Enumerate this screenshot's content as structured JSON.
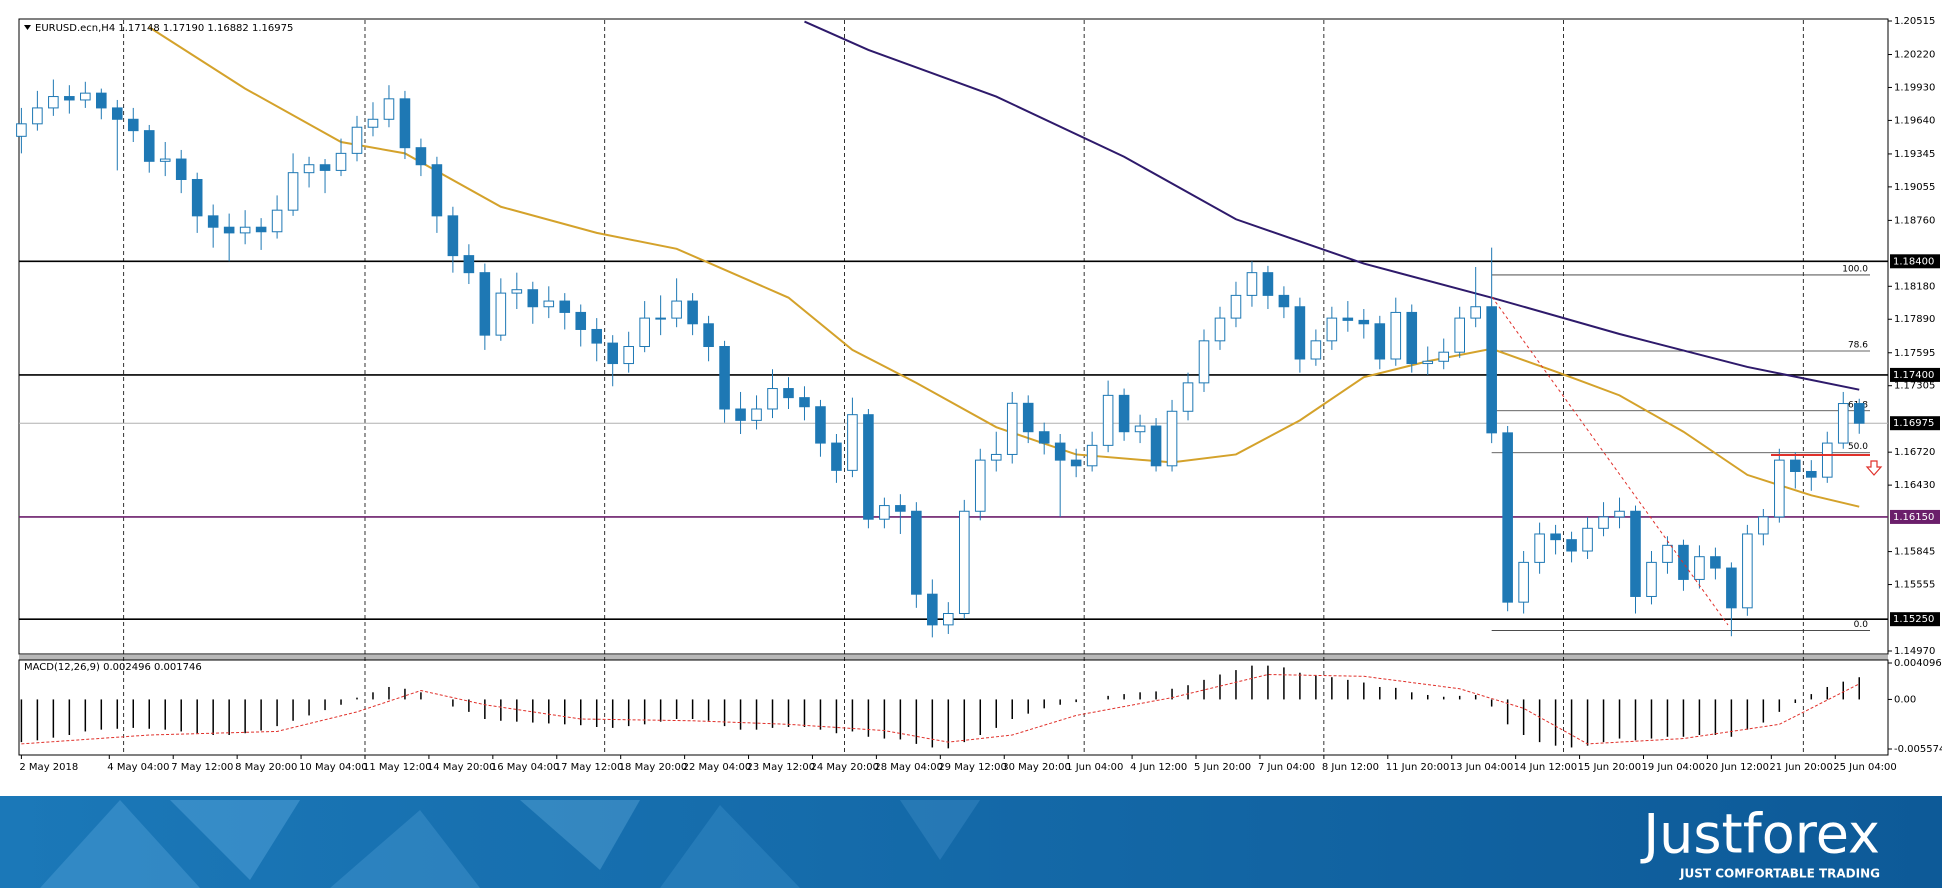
{
  "chart_data": {
    "type": "candlestick",
    "title": "EURUSD.ecn,H4  1.17148 1.17190 1.16882 1.16975",
    "xlim": [
      -0.15,
      116.8
    ],
    "xticks": [
      {
        "value": 0,
        "label": "2 May 2018"
      },
      {
        "value": 5.5,
        "label": "4 May 04:00"
      },
      {
        "value": 9.5,
        "label": "7 May 12:00"
      },
      {
        "value": 13.5,
        "label": "8 May 20:00"
      },
      {
        "value": 17.5,
        "label": "10 May 04:00"
      },
      {
        "value": 21.5,
        "label": "11 May 12:00"
      },
      {
        "value": 25.5,
        "label": "14 May 20:00"
      },
      {
        "value": 29.5,
        "label": "16 May 04:00"
      },
      {
        "value": 33.5,
        "label": "17 May 12:00"
      },
      {
        "value": 37.5,
        "label": "18 May 20:00"
      },
      {
        "value": 41.5,
        "label": "22 May 04:00"
      },
      {
        "value": 45.5,
        "label": "23 May 12:00"
      },
      {
        "value": 49.5,
        "label": "24 May 20:00"
      },
      {
        "value": 53.5,
        "label": "28 May 04:00"
      },
      {
        "value": 57.5,
        "label": "29 May 12:00"
      },
      {
        "value": 61.5,
        "label": "30 May 20:00"
      },
      {
        "value": 65.5,
        "label": "1 Jun 04:00"
      },
      {
        "value": 69.5,
        "label": "4 Jun 12:00"
      },
      {
        "value": 73.5,
        "label": "5 Jun 20:00"
      },
      {
        "value": 77.5,
        "label": "7 Jun 04:00"
      },
      {
        "value": 81.5,
        "label": "8 Jun 12:00"
      },
      {
        "value": 85.5,
        "label": "11 Jun 20:00"
      },
      {
        "value": 89.5,
        "label": "13 Jun 04:00"
      },
      {
        "value": 93.5,
        "label": "14 Jun 12:00"
      },
      {
        "value": 97.5,
        "label": "15 Jun 20:00"
      },
      {
        "value": 101.5,
        "label": "19 Jun 04:00"
      },
      {
        "value": 105.5,
        "label": "20 Jun 12:00"
      },
      {
        "value": 109.5,
        "label": "21 Jun 20:00"
      },
      {
        "value": 113.5,
        "label": "25 Jun 04:00"
      }
    ],
    "xgrid": [
      6.4,
      21.5,
      36.5,
      51.5,
      66.5,
      81.5,
      96.5,
      111.5
    ],
    "ylim": [
      1.1497,
      1.20515
    ],
    "yticks": [
      1.20515,
      {
        "value": 1.2022,
        "label": "1.20220"
      },
      {
        "value": 1.1993,
        "label": "1.19930"
      },
      {
        "value": 1.1964,
        "label": "1.19640"
      },
      1.19345,
      1.19055,
      {
        "value": 1.1876,
        "label": "1.18760"
      },
      {
        "value": 1.1818,
        "label": "1.18180"
      },
      {
        "value": 1.1789,
        "label": "1.17890"
      },
      1.17595,
      1.17305,
      {
        "value": 1.1672,
        "label": "1.16720"
      },
      {
        "value": 1.1643,
        "label": "1.16430"
      },
      1.15845,
      1.15555,
      {
        "value": 1.1497,
        "label": "1.14970"
      }
    ],
    "up_color": "#ffffff",
    "down_color": "#1e78b4",
    "ohlc": [
      [
        1.195,
        1.1975,
        1.1935,
        1.1961
      ],
      [
        1.1961,
        1.199,
        1.1955,
        1.1975
      ],
      [
        1.1975,
        1.2,
        1.1968,
        1.1985
      ],
      [
        1.1985,
        1.1995,
        1.197,
        1.1982
      ],
      [
        1.1982,
        1.1998,
        1.1975,
        1.1988
      ],
      [
        1.1988,
        1.1992,
        1.1965,
        1.1975
      ],
      [
        1.1975,
        1.1982,
        1.192,
        1.1965
      ],
      [
        1.1965,
        1.1975,
        1.1945,
        1.1955
      ],
      [
        1.1955,
        1.196,
        1.1918,
        1.1928
      ],
      [
        1.1928,
        1.1945,
        1.1915,
        1.193
      ],
      [
        1.193,
        1.1938,
        1.19,
        1.1912
      ],
      [
        1.1912,
        1.1918,
        1.1865,
        1.188
      ],
      [
        1.188,
        1.189,
        1.1852,
        1.187
      ],
      [
        1.187,
        1.1882,
        1.184,
        1.1865
      ],
      [
        1.1865,
        1.1885,
        1.1855,
        1.187
      ],
      [
        1.187,
        1.1878,
        1.185,
        1.1866
      ],
      [
        1.1866,
        1.1898,
        1.186,
        1.1885
      ],
      [
        1.1885,
        1.1935,
        1.188,
        1.1918
      ],
      [
        1.1918,
        1.1932,
        1.1905,
        1.1925
      ],
      [
        1.1925,
        1.193,
        1.19,
        1.192
      ],
      [
        1.192,
        1.1948,
        1.1915,
        1.1935
      ],
      [
        1.1935,
        1.1968,
        1.1928,
        1.1958
      ],
      [
        1.1958,
        1.198,
        1.195,
        1.1965
      ],
      [
        1.1965,
        1.1995,
        1.1958,
        1.1983
      ],
      [
        1.1983,
        1.199,
        1.193,
        1.194
      ],
      [
        1.194,
        1.1948,
        1.1915,
        1.1925
      ],
      [
        1.1925,
        1.1932,
        1.1865,
        1.188
      ],
      [
        1.188,
        1.1888,
        1.183,
        1.1845
      ],
      [
        1.1845,
        1.1855,
        1.182,
        1.183
      ],
      [
        1.183,
        1.1838,
        1.1762,
        1.1775
      ],
      [
        1.1775,
        1.1825,
        1.177,
        1.1812
      ],
      [
        1.1812,
        1.183,
        1.1798,
        1.1815
      ],
      [
        1.1815,
        1.1822,
        1.1785,
        1.18
      ],
      [
        1.18,
        1.1818,
        1.179,
        1.1805
      ],
      [
        1.1805,
        1.1812,
        1.178,
        1.1795
      ],
      [
        1.1795,
        1.1802,
        1.1765,
        1.178
      ],
      [
        1.178,
        1.179,
        1.1752,
        1.1768
      ],
      [
        1.1768,
        1.1775,
        1.173,
        1.175
      ],
      [
        1.175,
        1.1778,
        1.1742,
        1.1765
      ],
      [
        1.1765,
        1.1805,
        1.176,
        1.179
      ],
      [
        1.179,
        1.181,
        1.1775,
        1.179
      ],
      [
        1.179,
        1.1825,
        1.1782,
        1.1805
      ],
      [
        1.1805,
        1.1812,
        1.1775,
        1.1785
      ],
      [
        1.1785,
        1.1792,
        1.1752,
        1.1765
      ],
      [
        1.1765,
        1.177,
        1.1698,
        1.171
      ],
      [
        1.171,
        1.1725,
        1.1688,
        1.17
      ],
      [
        1.17,
        1.1722,
        1.1692,
        1.171
      ],
      [
        1.171,
        1.1745,
        1.1702,
        1.1728
      ],
      [
        1.1728,
        1.1738,
        1.171,
        1.172
      ],
      [
        1.172,
        1.173,
        1.17,
        1.1712
      ],
      [
        1.1712,
        1.1718,
        1.1668,
        1.168
      ],
      [
        1.168,
        1.1688,
        1.1645,
        1.1656
      ],
      [
        1.1656,
        1.172,
        1.165,
        1.1705
      ],
      [
        1.1705,
        1.171,
        1.1605,
        1.1613
      ],
      [
        1.1613,
        1.1632,
        1.1605,
        1.1625
      ],
      [
        1.1625,
        1.1635,
        1.16,
        1.162
      ],
      [
        1.162,
        1.1628,
        1.1535,
        1.1547
      ],
      [
        1.1547,
        1.156,
        1.1509,
        1.152
      ],
      [
        1.152,
        1.154,
        1.1512,
        1.153
      ],
      [
        1.153,
        1.163,
        1.1525,
        1.162
      ],
      [
        1.162,
        1.1675,
        1.1612,
        1.1665
      ],
      [
        1.1665,
        1.169,
        1.1655,
        1.167
      ],
      [
        1.167,
        1.1725,
        1.1662,
        1.1715
      ],
      [
        1.1715,
        1.1722,
        1.168,
        1.169
      ],
      [
        1.169,
        1.1698,
        1.167,
        1.168
      ],
      [
        1.168,
        1.1688,
        1.1615,
        1.1665
      ],
      [
        1.1665,
        1.1675,
        1.165,
        1.166
      ],
      [
        1.166,
        1.169,
        1.1655,
        1.1678
      ],
      [
        1.1678,
        1.1735,
        1.1672,
        1.1722
      ],
      [
        1.1722,
        1.1728,
        1.1682,
        1.169
      ],
      [
        1.169,
        1.1705,
        1.168,
        1.1695
      ],
      [
        1.1695,
        1.1702,
        1.1655,
        1.166
      ],
      [
        1.166,
        1.1718,
        1.1655,
        1.1708
      ],
      [
        1.1708,
        1.1742,
        1.17,
        1.1733
      ],
      [
        1.1733,
        1.178,
        1.1725,
        1.177
      ],
      [
        1.177,
        1.18,
        1.1762,
        1.179
      ],
      [
        1.179,
        1.1822,
        1.1782,
        1.181
      ],
      [
        1.181,
        1.184,
        1.18,
        1.183
      ],
      [
        1.183,
        1.1836,
        1.1798,
        1.181
      ],
      [
        1.181,
        1.1818,
        1.179,
        1.18
      ],
      [
        1.18,
        1.1808,
        1.1742,
        1.1754
      ],
      [
        1.1754,
        1.178,
        1.1748,
        1.177
      ],
      [
        1.177,
        1.18,
        1.1762,
        1.179
      ],
      [
        1.179,
        1.1805,
        1.1778,
        1.1788
      ],
      [
        1.1788,
        1.1798,
        1.1772,
        1.1785
      ],
      [
        1.1785,
        1.1792,
        1.1745,
        1.1754
      ],
      [
        1.1754,
        1.1808,
        1.1748,
        1.1795
      ],
      [
        1.1795,
        1.1802,
        1.1742,
        1.175
      ],
      [
        1.175,
        1.1765,
        1.174,
        1.1752
      ],
      [
        1.1752,
        1.1772,
        1.1745,
        1.176
      ],
      [
        1.176,
        1.18,
        1.1755,
        1.179
      ],
      [
        1.179,
        1.1835,
        1.1782,
        1.18
      ],
      [
        1.18,
        1.1852,
        1.168,
        1.1689
      ],
      [
        1.1689,
        1.1695,
        1.1532,
        1.154
      ],
      [
        1.154,
        1.1585,
        1.153,
        1.1575
      ],
      [
        1.1575,
        1.161,
        1.1565,
        1.16
      ],
      [
        1.16,
        1.1608,
        1.1582,
        1.1595
      ],
      [
        1.1595,
        1.1602,
        1.1575,
        1.1585
      ],
      [
        1.1585,
        1.1615,
        1.1578,
        1.1605
      ],
      [
        1.1605,
        1.1628,
        1.1598,
        1.1615
      ],
      [
        1.1615,
        1.1632,
        1.1605,
        1.162
      ],
      [
        1.162,
        1.1625,
        1.153,
        1.1545
      ],
      [
        1.1545,
        1.1585,
        1.1538,
        1.1575
      ],
      [
        1.1575,
        1.1598,
        1.1565,
        1.159
      ],
      [
        1.159,
        1.1595,
        1.155,
        1.156
      ],
      [
        1.156,
        1.159,
        1.1552,
        1.158
      ],
      [
        1.158,
        1.1588,
        1.156,
        1.157
      ],
      [
        1.157,
        1.1575,
        1.151,
        1.1535
      ],
      [
        1.1535,
        1.1608,
        1.1528,
        1.16
      ],
      [
        1.16,
        1.1622,
        1.159,
        1.1615
      ],
      [
        1.1615,
        1.1675,
        1.161,
        1.1665
      ],
      [
        1.1665,
        1.1672,
        1.164,
        1.1655
      ],
      [
        1.1655,
        1.1665,
        1.1638,
        1.165
      ],
      [
        1.165,
        1.169,
        1.1645,
        1.168
      ],
      [
        1.168,
        1.1725,
        1.1675,
        1.17148
      ],
      [
        1.17148,
        1.1719,
        1.16882,
        1.16975
      ]
    ],
    "moving_averages": [
      {
        "color": "#d4a22b",
        "x": [
          8,
          14,
          20,
          24,
          30,
          36,
          41,
          48,
          52,
          56,
          61,
          66,
          72,
          76,
          80,
          84,
          88,
          92,
          96,
          100,
          104,
          108,
          112,
          115
        ],
        "values": [
          1.2046,
          1.1992,
          1.1945,
          1.1935,
          1.1888,
          1.1865,
          1.1851,
          1.1808,
          1.1762,
          1.1733,
          1.1694,
          1.167,
          1.1663,
          1.167,
          1.17,
          1.1738,
          1.1752,
          1.1763,
          1.1743,
          1.1722,
          1.169,
          1.1652,
          1.1634,
          1.1624
        ]
      },
      {
        "color": "#2e1a6b",
        "x": [
          49,
          53,
          61,
          69,
          76,
          84,
          92,
          100,
          108,
          115
        ],
        "values": [
          1.2051,
          1.2026,
          1.1985,
          1.1932,
          1.1877,
          1.1838,
          1.1808,
          1.1776,
          1.1747,
          1.1727
        ]
      }
    ],
    "levels": [
      {
        "value": 1.184,
        "label": "1.18400",
        "color": "#000000"
      },
      {
        "value": 1.174,
        "label": "1.17400",
        "color": "#000000"
      },
      {
        "value": 1.16975,
        "label": "1.16975",
        "color": "#b0b0b0"
      },
      {
        "value": 1.1615,
        "label": "1.16150",
        "color": "#6b1f6b"
      },
      {
        "value": 1.1525,
        "label": "1.15250",
        "color": "#000000"
      }
    ],
    "fib": {
      "high": 1.1828,
      "low": 1.1515,
      "levels": [
        {
          "value": 100,
          "label": "100.0"
        },
        {
          "value": 78.6,
          "label": "78.6"
        },
        {
          "value": 61.8,
          "label": "61.8"
        },
        {
          "value": 50,
          "label": "50.0"
        },
        {
          "value": 0,
          "label": "0.0"
        }
      ]
    },
    "macd": {
      "label": "MACD(12,26,9) 0.002496 0.001746",
      "ylim": [
        -0.005574,
        0.004096
      ],
      "yticks": [
        0.004096,
        {
          "value": 0,
          "label": "0.00"
        },
        -0.005574
      ],
      "histogram": [
        -0.0048,
        -0.0046,
        -0.0043,
        -0.004,
        -0.0036,
        -0.0034,
        -0.0033,
        -0.0032,
        -0.0033,
        -0.0034,
        -0.0036,
        -0.0038,
        -0.004,
        -0.004,
        -0.0038,
        -0.0035,
        -0.003,
        -0.0024,
        -0.0018,
        -0.0012,
        -0.0006,
        0.0002,
        0.0008,
        0.0014,
        0.0012,
        0.0008,
        0.0,
        -0.0008,
        -0.0014,
        -0.0022,
        -0.0024,
        -0.0025,
        -0.0026,
        -0.0027,
        -0.0028,
        -0.0029,
        -0.0031,
        -0.0032,
        -0.003,
        -0.0028,
        -0.0025,
        -0.0022,
        -0.0022,
        -0.0024,
        -0.003,
        -0.0034,
        -0.0034,
        -0.0032,
        -0.0031,
        -0.0031,
        -0.0034,
        -0.0038,
        -0.0036,
        -0.0042,
        -0.0044,
        -0.0045,
        -0.005,
        -0.0054,
        -0.0055,
        -0.0048,
        -0.004,
        -0.0032,
        -0.0022,
        -0.0016,
        -0.001,
        -0.0006,
        -0.0003,
        0.0,
        0.0004,
        0.0006,
        0.0008,
        0.0009,
        0.0012,
        0.0016,
        0.0022,
        0.0028,
        0.0033,
        0.0038,
        0.0038,
        0.0036,
        0.003,
        0.0027,
        0.0025,
        0.0022,
        0.0019,
        0.0014,
        0.0013,
        0.0008,
        0.0005,
        0.0003,
        0.0004,
        0.0005,
        -0.0008,
        -0.0028,
        -0.004,
        -0.0048,
        -0.0052,
        -0.0054,
        -0.0052,
        -0.0048,
        -0.0044,
        -0.0046,
        -0.0044,
        -0.0042,
        -0.0042,
        -0.004,
        -0.004,
        -0.0042,
        -0.0034,
        -0.0026,
        -0.0014,
        -0.0004,
        0.0006,
        0.0014,
        0.002,
        0.002496
      ],
      "histogram_color": "#000000",
      "signal": {
        "color": "#e0312b",
        "x": [
          0,
          8,
          16,
          21,
          25,
          29,
          35,
          42,
          48,
          54,
          58,
          62,
          66,
          72,
          78,
          84,
          90,
          94,
          98,
          104,
          110,
          115
        ],
        "values": [
          -0.005,
          -0.004,
          -0.0036,
          -0.0014,
          0.001,
          -0.0006,
          -0.0022,
          -0.0024,
          -0.0028,
          -0.0035,
          -0.0048,
          -0.004,
          -0.0018,
          0.0002,
          0.0028,
          0.0026,
          0.0012,
          -0.001,
          -0.005,
          -0.0044,
          -0.0028,
          0.001746
        ]
      }
    }
  },
  "branding": {
    "logo": "Justforex",
    "tagline": "JUST COMFORTABLE TRADING"
  }
}
